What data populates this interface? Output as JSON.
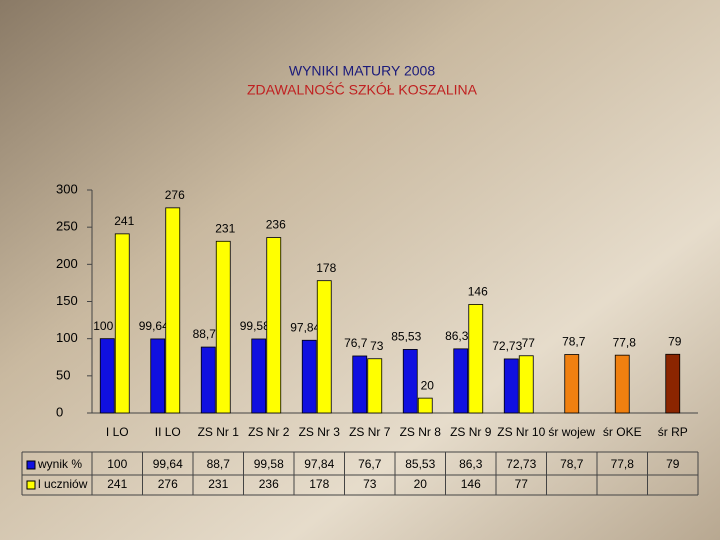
{
  "chart_data": {
    "type": "bar",
    "title": "WYNIKI MATURY 2008",
    "subtitle": "ZDAWALNOŚĆ SZKÓŁ KOSZALINA",
    "categories": [
      "I LO",
      "II LO",
      "ZS Nr 1",
      "ZS Nr 2",
      "ZS Nr 3",
      "ZS Nr 7",
      "ZS Nr 8",
      "ZS Nr 9",
      "ZS Nr 10",
      "śr wojew",
      "śr OKE",
      "śr RP"
    ],
    "series": [
      {
        "name": "wynik %",
        "color": "#1010e0",
        "colors": [
          "#1010e0",
          "#1010e0",
          "#1010e0",
          "#1010e0",
          "#1010e0",
          "#1010e0",
          "#1010e0",
          "#1010e0",
          "#1010e0",
          "#f08010",
          "#f08010",
          "#8b2500"
        ],
        "values": [
          100,
          99.64,
          88.7,
          99.58,
          97.84,
          76.7,
          85.53,
          86.3,
          72.73,
          78.7,
          77.8,
          79
        ],
        "value_labels": [
          "100",
          "99,64",
          "88,7",
          "99,58",
          "97,84",
          "76,7",
          "85,53",
          "86,3",
          "72,73",
          "78,7",
          "77,8",
          "79"
        ]
      },
      {
        "name": "l uczniów",
        "color": "#ffff00",
        "values": [
          241,
          276,
          231,
          236,
          178,
          73,
          20,
          146,
          77,
          null,
          null,
          null
        ]
      }
    ],
    "ylim": [
      0,
      300
    ],
    "yticks": [
      0,
      50,
      100,
      150,
      200,
      250,
      300
    ]
  }
}
